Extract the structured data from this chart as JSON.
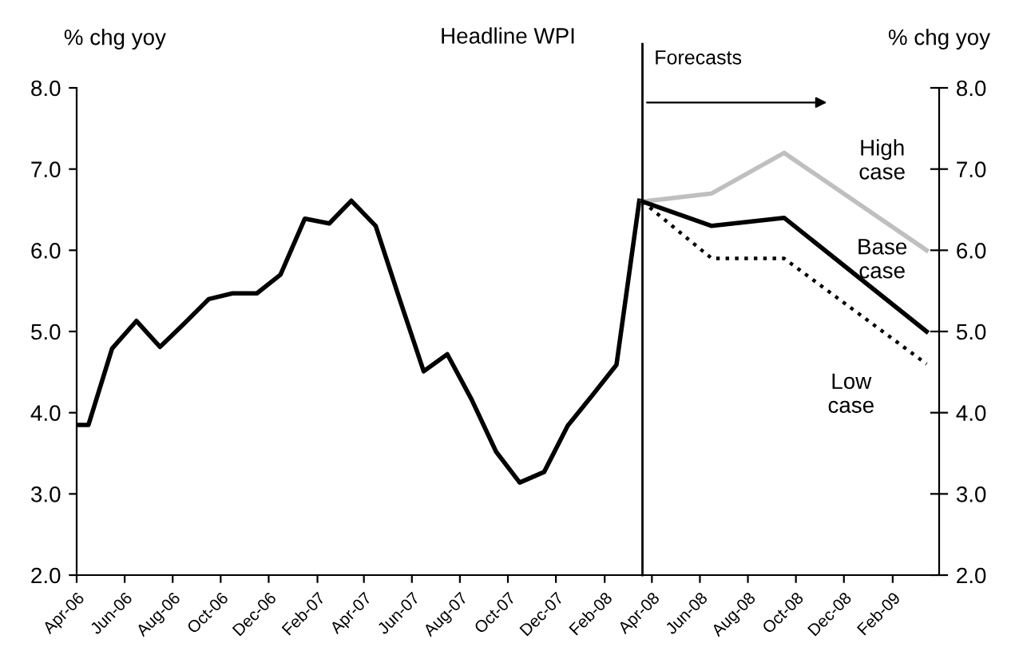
{
  "chart_data": {
    "type": "line",
    "title": "Headline WPI",
    "ylabel": "% chg yoy",
    "y2label": "% chg yoy",
    "series": [
      {
        "color": "#000000",
        "line_style": "solid",
        "x": [
          "2006-04-01",
          "2006-04-16",
          "2006-05-16",
          "2006-06-16",
          "2006-07-16",
          "2006-08-16",
          "2006-09-16",
          "2006-10-16",
          "2006-11-16",
          "2006-12-16",
          "2007-01-16",
          "2007-02-16",
          "2007-03-16",
          "2007-04-16",
          "2007-05-16",
          "2007-06-16",
          "2007-07-16",
          "2007-08-16",
          "2007-09-16",
          "2007-10-16",
          "2007-11-16",
          "2007-12-16",
          "2008-01-16",
          "2008-02-16",
          "2008-03-16"
        ],
        "values": [
          3.85,
          3.85,
          4.79,
          5.13,
          4.81,
          5.1,
          5.4,
          5.47,
          5.47,
          5.7,
          6.39,
          6.33,
          6.61,
          6.3,
          5.41,
          4.51,
          4.72,
          4.16,
          3.52,
          3.14,
          3.27,
          3.84,
          4.21,
          4.59,
          6.61
        ]
      },
      {
        "name": "High case",
        "color": "#bfbfbf",
        "line_style": "solid",
        "x": [
          "2008-03-20",
          "2008-06-16",
          "2008-09-16",
          "2009-03-16"
        ],
        "values": [
          6.6,
          6.7,
          7.2,
          6.0
        ]
      },
      {
        "name": "Base case",
        "color": "#000000",
        "line_style": "solid",
        "x": [
          "2008-03-20",
          "2008-06-16",
          "2008-09-16",
          "2009-03-16"
        ],
        "values": [
          6.6,
          6.3,
          6.4,
          5.0
        ]
      },
      {
        "name": "Low case",
        "color": "#000000",
        "line_style": "dotted",
        "x": [
          "2008-03-20",
          "2008-06-16",
          "2008-09-16",
          "2009-03-16"
        ],
        "values": [
          6.6,
          5.9,
          5.9,
          4.6
        ]
      }
    ],
    "xlim": [
      "2006-04-01",
      "2009-04-01"
    ],
    "xticks": [
      {
        "value": "2006-04-01",
        "label": "Apr-06"
      },
      {
        "value": "2006-06-01",
        "label": "Jun-06"
      },
      {
        "value": "2006-08-01",
        "label": "Aug-06"
      },
      {
        "value": "2006-10-01",
        "label": "Oct-06"
      },
      {
        "value": "2006-12-01",
        "label": "Dec-06"
      },
      {
        "value": "2007-02-01",
        "label": "Feb-07"
      },
      {
        "value": "2007-04-01",
        "label": "Apr-07"
      },
      {
        "value": "2007-06-01",
        "label": "Jun-07"
      },
      {
        "value": "2007-08-01",
        "label": "Aug-07"
      },
      {
        "value": "2007-10-01",
        "label": "Oct-07"
      },
      {
        "value": "2007-12-01",
        "label": "Dec-07"
      },
      {
        "value": "2008-02-01",
        "label": "Feb-08"
      },
      {
        "value": "2008-04-01",
        "label": "Apr-08"
      },
      {
        "value": "2008-06-01",
        "label": "Jun-08"
      },
      {
        "value": "2008-08-01",
        "label": "Aug-08"
      },
      {
        "value": "2008-10-01",
        "label": "Oct-08"
      },
      {
        "value": "2008-12-01",
        "label": "Dec-08"
      },
      {
        "value": "2009-02-01",
        "label": "Feb-09"
      }
    ],
    "ylim": [
      2,
      8
    ],
    "yticks": [
      {
        "value": 2,
        "label": "2.0"
      },
      {
        "value": 3,
        "label": "3.0"
      },
      {
        "value": 4,
        "label": "4.0"
      },
      {
        "value": 5,
        "label": "5.0"
      },
      {
        "value": 6,
        "label": "6.0"
      },
      {
        "value": 7,
        "label": "7.0"
      },
      {
        "value": 8,
        "label": "8.0"
      }
    ],
    "y2lim": [
      2,
      8
    ],
    "y2ticks": [
      {
        "value": 2,
        "label": "2.0"
      },
      {
        "value": 3,
        "label": "3.0"
      },
      {
        "value": 4,
        "label": "4.0"
      },
      {
        "value": 5,
        "label": "5.0"
      },
      {
        "value": 6,
        "label": "6.0"
      },
      {
        "value": 7,
        "label": "7.0"
      },
      {
        "value": 8,
        "label": "8.0"
      }
    ],
    "ref_lines": [
      {
        "axis": "x",
        "value": "2008-03-20",
        "label": "Forecasts",
        "color": "#000000"
      }
    ],
    "grid": false,
    "legend": false
  }
}
